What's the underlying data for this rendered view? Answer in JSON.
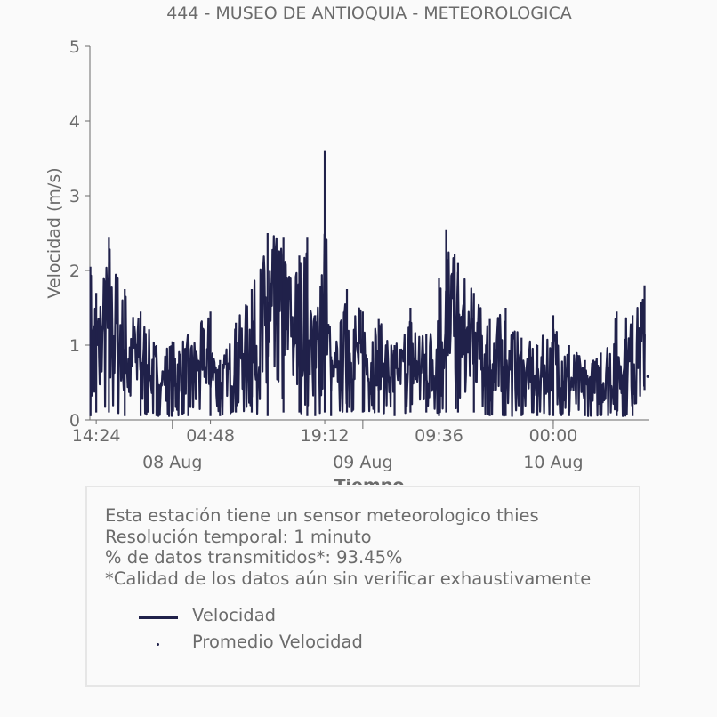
{
  "chart_data": {
    "type": "line",
    "title": "444 - MUSEO DE ANTIOQUIA - METEOROLOGICA",
    "xlabel": "Tiempo",
    "ylabel": "Velocidad (m/s)",
    "ylim": [
      0,
      5
    ],
    "yticks": [
      "0",
      "1",
      "2",
      "3",
      "4",
      "5"
    ],
    "xticks": [
      "14:24",
      "04:48",
      "19:12",
      "09:36",
      "00:00"
    ],
    "xticks_dates": [
      "08 Aug",
      "09 Aug",
      "10 Aug"
    ],
    "xlim": [
      "2019-08-07 13:36",
      "2019-08-10 12:00"
    ],
    "grid": false,
    "series": [
      {
        "name": "Velocidad",
        "color": "#20214a",
        "x": [
          "2019-08-07 13:40",
          "2019-08-07 14:24",
          "2019-08-07 16:00",
          "2019-08-07 18:00",
          "2019-08-07 20:00",
          "2019-08-07 22:00",
          "2019-08-08 00:00",
          "2019-08-08 02:00",
          "2019-08-08 04:48",
          "2019-08-08 06:00",
          "2019-08-08 08:00",
          "2019-08-08 10:00",
          "2019-08-08 12:00",
          "2019-08-08 14:00",
          "2019-08-08 16:00",
          "2019-08-08 17:00",
          "2019-08-08 18:00",
          "2019-08-08 19:12",
          "2019-08-08 20:00",
          "2019-08-08 22:00",
          "2019-08-09 00:00",
          "2019-08-09 02:00",
          "2019-08-09 04:00",
          "2019-08-09 06:00",
          "2019-08-09 08:00",
          "2019-08-09 09:36",
          "2019-08-09 10:30",
          "2019-08-09 12:00",
          "2019-08-09 14:00",
          "2019-08-09 16:00",
          "2019-08-09 18:00",
          "2019-08-09 20:00",
          "2019-08-09 22:00",
          "2019-08-10 00:00",
          "2019-08-10 02:00",
          "2019-08-10 04:00",
          "2019-08-10 06:00",
          "2019-08-10 08:00",
          "2019-08-10 10:00",
          "2019-08-10 11:30"
        ],
        "max_values": [
          2.05,
          1.7,
          2.45,
          1.75,
          1.45,
          1.0,
          1.05,
          1.15,
          1.45,
          0.8,
          1.3,
          1.75,
          2.5,
          2.45,
          2.2,
          2.45,
          1.4,
          3.6,
          0.85,
          1.75,
          1.45,
          1.35,
          1.0,
          1.5,
          1.15,
          1.9,
          2.55,
          2.1,
          1.7,
          1.35,
          1.5,
          1.1,
          1.0,
          1.4,
          1.0,
          0.8,
          0.9,
          1.45,
          1.4,
          1.8
        ],
        "min_values": [
          0.05,
          0.1,
          0.1,
          0.05,
          0.05,
          0.05,
          0.05,
          0.05,
          0.05,
          0.05,
          0.1,
          0.1,
          0.05,
          0.1,
          0.1,
          0.05,
          0.05,
          0.1,
          0.05,
          0.1,
          0.1,
          0.1,
          0.05,
          0.1,
          0.1,
          0.05,
          0.1,
          0.1,
          0.1,
          0.05,
          0.05,
          0.05,
          0.05,
          0.05,
          0.05,
          0.05,
          0.05,
          0.05,
          0.05,
          0.4
        ]
      },
      {
        "name": "Promedio Velocidad",
        "color": "#20214a",
        "x": [
          "2019-08-10 11:55"
        ],
        "values": [
          0.58
        ]
      }
    ]
  },
  "info": {
    "lines": [
      "Esta estación tiene un sensor meteorologico thies",
      "Resolución temporal: 1 minuto",
      "% de datos transmitidos*: 93.45%",
      "*Calidad de los datos aún sin verificar exhaustivamente"
    ],
    "legend": [
      {
        "label": "Velocidad"
      },
      {
        "label": "Promedio Velocidad"
      }
    ]
  }
}
